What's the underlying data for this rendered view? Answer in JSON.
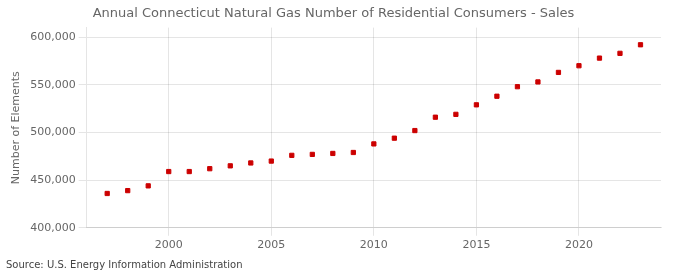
{
  "chart_data": {
    "type": "scatter",
    "title": "Annual Connecticut Natural Gas Number of Residential Consumers - Sales",
    "ylabel": "Number of Elements",
    "annotation": "Source: U.S. Energy Information Administration",
    "x": [
      1997,
      1998,
      1999,
      2000,
      2001,
      2002,
      2003,
      2004,
      2005,
      2006,
      2007,
      2008,
      2009,
      2010,
      2011,
      2012,
      2013,
      2014,
      2015,
      2016,
      2017,
      2018,
      2019,
      2020,
      2021,
      2022,
      2023
    ],
    "values": [
      436000,
      439000,
      444000,
      459000,
      459000,
      462000,
      465000,
      468000,
      470000,
      476000,
      477000,
      478000,
      479000,
      488000,
      494000,
      502000,
      516000,
      519000,
      529000,
      538000,
      548000,
      553000,
      563000,
      570000,
      578000,
      583000,
      592000
    ],
    "color": "#cc0000",
    "marker": "square",
    "xlim": [
      1996.0,
      2024.0
    ],
    "ylim": [
      400000,
      610000
    ],
    "xticks": [
      2000,
      2005,
      2010,
      2015,
      2020
    ],
    "yticks": [
      {
        "value": 400000,
        "label": "400,000"
      },
      {
        "value": 450000,
        "label": "450,000"
      },
      {
        "value": 500000,
        "label": "500,000"
      },
      {
        "value": 550000,
        "label": "550,000"
      },
      {
        "value": 600000,
        "label": "600,000"
      }
    ],
    "grid": true
  }
}
